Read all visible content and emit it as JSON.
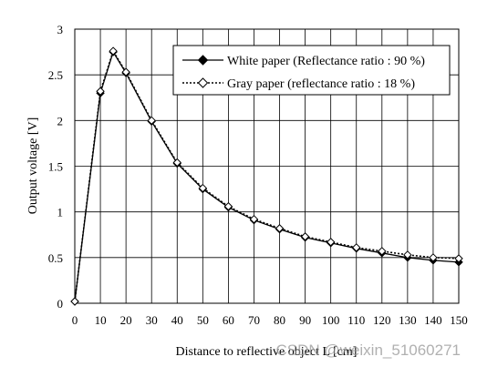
{
  "chart_data": {
    "type": "line",
    "title": "",
    "xlabel": "Distance to reflective object L [cm]",
    "ylabel": "Output voltage [V]",
    "xlim": [
      0,
      150
    ],
    "ylim": [
      0,
      3
    ],
    "x_ticks": [
      0,
      10,
      20,
      30,
      40,
      50,
      60,
      70,
      80,
      90,
      100,
      110,
      120,
      130,
      140,
      150
    ],
    "y_ticks": [
      0,
      0.5,
      1,
      1.5,
      2,
      2.5,
      3
    ],
    "y_tick_labels": [
      "0",
      "0.5",
      "1",
      "1.5",
      "2",
      "2.5",
      "3"
    ],
    "grid": true,
    "legend_position": "top-right",
    "series": [
      {
        "name": "White paper (Reflectance ratio : 90 %)",
        "line": "solid",
        "marker": "filled-diamond",
        "x": [
          0,
          10,
          15,
          20,
          30,
          40,
          50,
          60,
          70,
          80,
          90,
          100,
          110,
          120,
          130,
          140,
          150
        ],
        "y": [
          0.02,
          2.3,
          2.75,
          2.52,
          1.99,
          1.53,
          1.25,
          1.05,
          0.91,
          0.81,
          0.72,
          0.66,
          0.6,
          0.55,
          0.5,
          0.47,
          0.45
        ]
      },
      {
        "name": "Gray paper (reflectance ratio : 18 %)",
        "line": "dotted",
        "marker": "open-diamond",
        "x": [
          0,
          10,
          15,
          20,
          30,
          40,
          50,
          60,
          70,
          80,
          90,
          100,
          110,
          120,
          130,
          140,
          150
        ],
        "y": [
          0.02,
          2.32,
          2.76,
          2.53,
          2.0,
          1.54,
          1.26,
          1.06,
          0.92,
          0.82,
          0.73,
          0.67,
          0.61,
          0.57,
          0.53,
          0.5,
          0.49
        ]
      }
    ]
  },
  "watermark": "CSDN @weixin_51060271"
}
